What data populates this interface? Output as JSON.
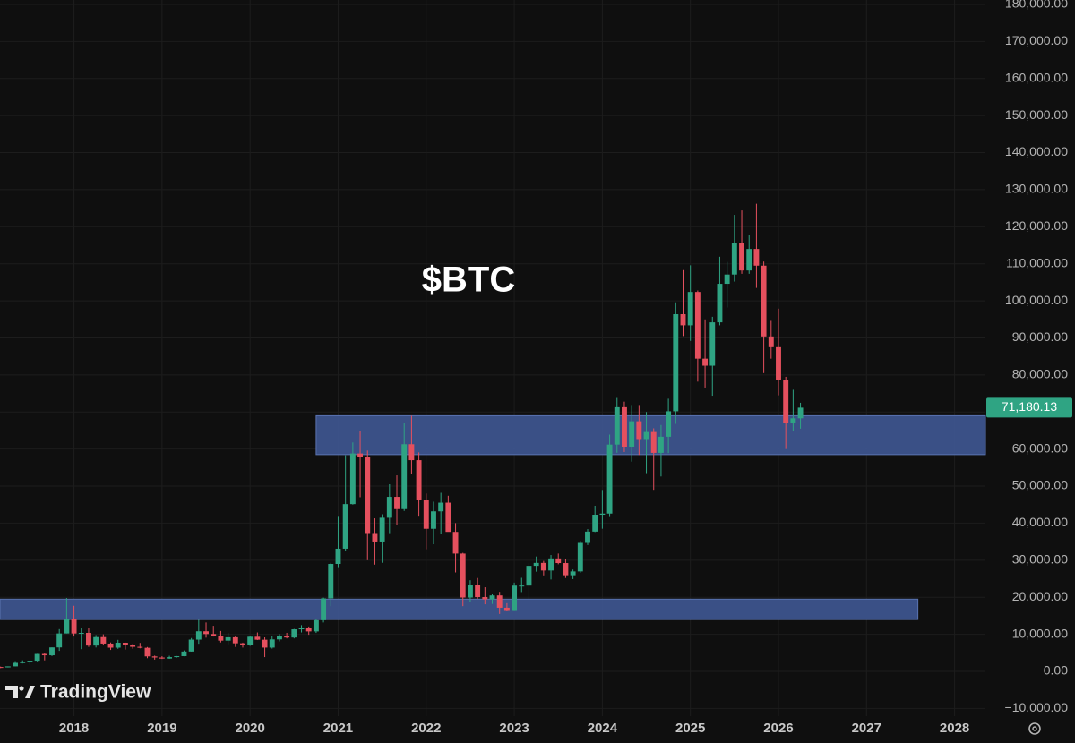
{
  "chart_data": {
    "type": "candlestick",
    "title": "$BTC",
    "x": [
      "2017-03",
      "2017-04",
      "2017-05",
      "2017-06",
      "2017-07",
      "2017-08",
      "2017-09",
      "2017-10",
      "2017-11",
      "2017-12",
      "2018-01",
      "2018-02",
      "2018-03",
      "2018-04",
      "2018-05",
      "2018-06",
      "2018-07",
      "2018-08",
      "2018-09",
      "2018-10",
      "2018-11",
      "2018-12",
      "2019-01",
      "2019-02",
      "2019-03",
      "2019-04",
      "2019-05",
      "2019-06",
      "2019-07",
      "2019-08",
      "2019-09",
      "2019-10",
      "2019-11",
      "2019-12",
      "2020-01",
      "2020-02",
      "2020-03",
      "2020-04",
      "2020-05",
      "2020-06",
      "2020-07",
      "2020-08",
      "2020-09",
      "2020-10",
      "2020-11",
      "2020-12",
      "2021-01",
      "2021-02",
      "2021-03",
      "2021-04",
      "2021-05",
      "2021-06",
      "2021-07",
      "2021-08",
      "2021-09",
      "2021-10",
      "2021-11",
      "2021-12",
      "2022-01",
      "2022-02",
      "2022-03",
      "2022-04",
      "2022-05",
      "2022-06",
      "2022-07",
      "2022-08",
      "2022-09",
      "2022-10",
      "2022-11",
      "2022-12",
      "2023-01",
      "2023-02",
      "2023-03",
      "2023-04",
      "2023-05",
      "2023-06",
      "2023-07",
      "2023-08",
      "2023-09",
      "2023-10",
      "2023-11",
      "2023-12",
      "2024-01",
      "2024-02",
      "2024-03",
      "2024-04",
      "2024-05",
      "2024-06",
      "2024-07",
      "2024-08",
      "2024-09",
      "2024-10",
      "2024-11",
      "2024-12",
      "2025-01",
      "2025-02",
      "2025-03",
      "2025-04",
      "2025-05",
      "2025-06",
      "2025-07",
      "2025-08",
      "2025-09",
      "2025-10",
      "2025-11",
      "2025-12",
      "2026-01",
      "2026-02",
      "2026-03",
      "2026-04"
    ],
    "open": [
      1180,
      1080,
      1350,
      2300,
      2480,
      2880,
      4700,
      4340,
      6470,
      10230,
      14160,
      10220,
      10390,
      6970,
      9250,
      7500,
      6400,
      7730,
      7030,
      6630,
      6370,
      4040,
      3740,
      3460,
      3850,
      4110,
      5350,
      8570,
      10820,
      10080,
      9600,
      8290,
      9200,
      7570,
      7190,
      9350,
      8540,
      6420,
      8630,
      9450,
      9140,
      11350,
      11650,
      10780,
      13800,
      19700,
      28990,
      33110,
      45140,
      58800,
      57750,
      37330,
      35040,
      41460,
      47100,
      43790,
      61300,
      57000,
      46300,
      38480,
      43190,
      45530,
      37640,
      31790,
      19930,
      23300,
      20050,
      19430,
      20490,
      17170,
      16550,
      23140,
      23150,
      28480,
      29270,
      27220,
      30480,
      29230,
      25940,
      26970,
      34670,
      37720,
      42280,
      42580,
      61200,
      71300,
      60640,
      67500,
      62700,
      64600,
      58970,
      63330,
      70200,
      96400,
      93400,
      102400,
      84400,
      82500,
      94200,
      104600,
      107100,
      115700,
      108200,
      114000,
      109500,
      90400,
      87500,
      78600,
      67000,
      68300
    ],
    "high": [
      1290,
      1350,
      2760,
      2980,
      2920,
      4740,
      5000,
      6470,
      11400,
      19800,
      17700,
      11800,
      11700,
      9800,
      10000,
      7800,
      8500,
      7760,
      7400,
      7680,
      6570,
      4260,
      4100,
      4210,
      4150,
      5640,
      9000,
      13900,
      13200,
      12300,
      10900,
      10400,
      9500,
      7750,
      9580,
      10500,
      9180,
      9460,
      10070,
      10400,
      11450,
      12470,
      12100,
      14100,
      19900,
      29300,
      41950,
      58330,
      61780,
      64900,
      59600,
      41300,
      42400,
      50500,
      52900,
      67000,
      69000,
      59100,
      48000,
      45800,
      48200,
      47400,
      40000,
      31990,
      24600,
      25200,
      22700,
      21000,
      21450,
      18400,
      23950,
      25250,
      29200,
      31000,
      29800,
      31400,
      31800,
      30200,
      27480,
      35200,
      38400,
      44700,
      48970,
      63900,
      73800,
      72800,
      71900,
      71900,
      70000,
      65600,
      66500,
      73600,
      99600,
      108300,
      109600,
      102800,
      95000,
      95700,
      111900,
      110500,
      123200,
      124400,
      117900,
      126200,
      110600,
      94600,
      97900,
      79500,
      76000,
      72500
    ],
    "low": [
      890,
      1060,
      1350,
      2130,
      1840,
      2700,
      2970,
      4130,
      5530,
      10230,
      9400,
      6000,
      6600,
      6450,
      7000,
      5780,
      6080,
      5880,
      6120,
      6220,
      3560,
      3160,
      3350,
      3390,
      3730,
      4080,
      5330,
      7450,
      9100,
      9400,
      7800,
      7300,
      6600,
      6430,
      6870,
      8450,
      3850,
      6150,
      8100,
      8900,
      8900,
      10500,
      9880,
      10370,
      13200,
      17600,
      28130,
      32400,
      45000,
      47000,
      30000,
      28800,
      29300,
      37300,
      39600,
      43300,
      53300,
      42000,
      32950,
      34300,
      37200,
      37700,
      26700,
      17600,
      18800,
      19600,
      18100,
      18200,
      15500,
      16300,
      16500,
      21400,
      19600,
      26900,
      25900,
      24800,
      28900,
      25200,
      24900,
      26600,
      34100,
      37600,
      38500,
      41900,
      59000,
      59200,
      56600,
      58400,
      53500,
      49000,
      52600,
      58900,
      66800,
      90500,
      89200,
      78200,
      76600,
      74400,
      93400,
      98200,
      105200,
      107300,
      107300,
      103500,
      80500,
      84400,
      74500,
      60000,
      64800,
      65500
    ],
    "close": [
      1080,
      1350,
      2300,
      2480,
      2880,
      4700,
      4340,
      6470,
      10230,
      14160,
      10220,
      10390,
      6970,
      9250,
      7500,
      6400,
      7730,
      7030,
      6630,
      6370,
      4040,
      3740,
      3460,
      3850,
      4110,
      5350,
      8570,
      10820,
      10080,
      9600,
      8290,
      9200,
      7570,
      7190,
      9350,
      8540,
      6420,
      8630,
      9450,
      9140,
      11350,
      11650,
      10780,
      13800,
      19700,
      28990,
      33110,
      45140,
      58800,
      57750,
      37330,
      35040,
      41460,
      47100,
      43790,
      61300,
      57000,
      46300,
      38480,
      43190,
      45530,
      37640,
      31790,
      19930,
      23300,
      20050,
      19430,
      20490,
      17170,
      16550,
      23140,
      23150,
      28480,
      29270,
      27220,
      30480,
      29230,
      25940,
      26970,
      34670,
      37720,
      42280,
      42580,
      61200,
      71300,
      60640,
      67500,
      62700,
      64600,
      58970,
      63330,
      70200,
      96400,
      93400,
      102400,
      84400,
      82500,
      94200,
      104600,
      107100,
      115700,
      108200,
      114000,
      109500,
      90400,
      87500,
      78600,
      67000,
      68300,
      71180.13
    ],
    "up_color": "#2fa483",
    "down_color": "#e5505e",
    "ylim": [
      -12080,
      181200
    ],
    "yticks": [
      {
        "value": -10000,
        "label": "−10,000.00"
      },
      {
        "value": 0,
        "label": "0.00"
      },
      {
        "value": 10000,
        "label": "10,000.00"
      },
      {
        "value": 20000,
        "label": "20,000.00"
      },
      {
        "value": 30000,
        "label": "30,000.00"
      },
      {
        "value": 40000,
        "label": "40,000.00"
      },
      {
        "value": 50000,
        "label": "50,000.00"
      },
      {
        "value": 60000,
        "label": "60,000.00"
      },
      {
        "value": 70000,
        "label": "70,000.00"
      },
      {
        "value": 80000,
        "label": "80,000.00"
      },
      {
        "value": 90000,
        "label": "90,000.00"
      },
      {
        "value": 100000,
        "label": "100,000.00"
      },
      {
        "value": 110000,
        "label": "110,000.00"
      },
      {
        "value": 120000,
        "label": "120,000.00"
      },
      {
        "value": 130000,
        "label": "130,000.00"
      },
      {
        "value": 140000,
        "label": "140,000.00"
      },
      {
        "value": 150000,
        "label": "150,000.00"
      },
      {
        "value": 160000,
        "label": "160,000.00"
      },
      {
        "value": 170000,
        "label": "170,000.00"
      },
      {
        "value": 180000,
        "label": "180,000.00"
      }
    ],
    "xlim": [
      2017.16,
      2028.35
    ],
    "xticks": [
      2018,
      2019,
      2020,
      2021,
      2022,
      2023,
      2024,
      2025,
      2026,
      2027,
      2028
    ],
    "grid": true,
    "zones": [
      {
        "low": 58500,
        "high": 69000,
        "from": "2020-10",
        "color": "#3e5690"
      },
      {
        "low": 14000,
        "high": 19500,
        "to": "2027-08",
        "color": "#3e5690"
      }
    ],
    "last_price": {
      "value": 71180.13,
      "label": "71,180.13"
    }
  },
  "watermark": "TradingView"
}
